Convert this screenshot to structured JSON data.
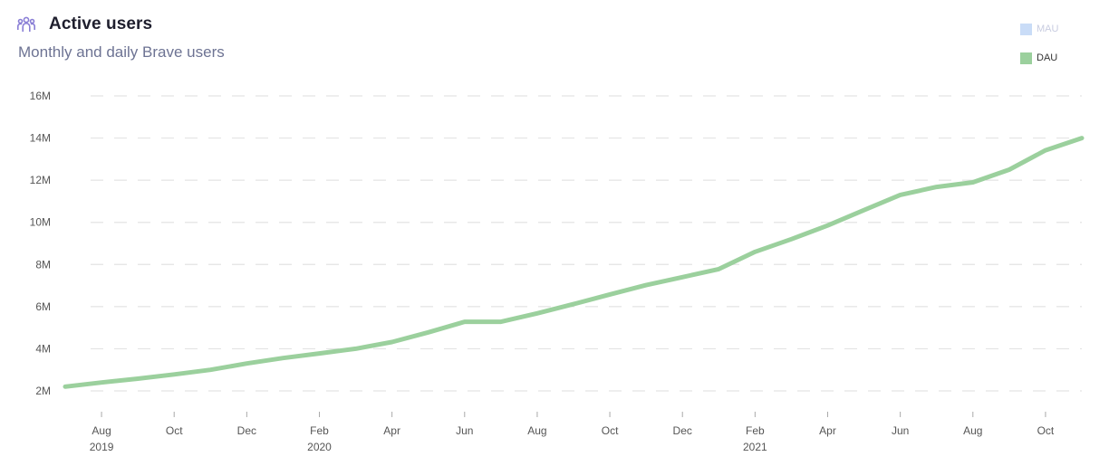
{
  "header": {
    "title": "Active users",
    "subtitle": "Monthly and daily Brave users",
    "icon": "users-icon"
  },
  "legend": [
    {
      "label": "MAU",
      "color": "#c9dcf7",
      "active": false
    },
    {
      "label": "DAU",
      "color": "#9bd09d",
      "active": true
    }
  ],
  "colors": {
    "dau_line": "#9bd09d",
    "grid": "#e4e4e4",
    "icon": "#8a7fd6"
  },
  "chart_data": {
    "type": "line",
    "title": "Active users",
    "subtitle": "Monthly and daily Brave users",
    "xlabel": "",
    "ylabel": "",
    "ylim": [
      2000000,
      16000000
    ],
    "y_ticks": [
      {
        "value": 2000000,
        "label": "2M"
      },
      {
        "value": 4000000,
        "label": "4M"
      },
      {
        "value": 6000000,
        "label": "6M"
      },
      {
        "value": 8000000,
        "label": "8M"
      },
      {
        "value": 10000000,
        "label": "10M"
      },
      {
        "value": 12000000,
        "label": "12M"
      },
      {
        "value": 14000000,
        "label": "14M"
      },
      {
        "value": 16000000,
        "label": "16M"
      }
    ],
    "x_ticks": [
      {
        "date": "2019-08",
        "label": "Aug",
        "year": "2019"
      },
      {
        "date": "2019-10",
        "label": "Oct",
        "year": ""
      },
      {
        "date": "2019-12",
        "label": "Dec",
        "year": ""
      },
      {
        "date": "2020-02",
        "label": "Feb",
        "year": "2020"
      },
      {
        "date": "2020-04",
        "label": "Apr",
        "year": ""
      },
      {
        "date": "2020-06",
        "label": "Jun",
        "year": ""
      },
      {
        "date": "2020-08",
        "label": "Aug",
        "year": ""
      },
      {
        "date": "2020-10",
        "label": "Oct",
        "year": ""
      },
      {
        "date": "2020-12",
        "label": "Dec",
        "year": ""
      },
      {
        "date": "2021-02",
        "label": "Feb",
        "year": "2021"
      },
      {
        "date": "2021-04",
        "label": "Apr",
        "year": ""
      },
      {
        "date": "2021-06",
        "label": "Jun",
        "year": ""
      },
      {
        "date": "2021-08",
        "label": "Aug",
        "year": ""
      },
      {
        "date": "2021-10",
        "label": "Oct",
        "year": ""
      }
    ],
    "grid": true,
    "legend_position": "top-right",
    "series": [
      {
        "name": "DAU",
        "color": "#9bd09d",
        "points": [
          {
            "x": "2019-07",
            "y": 2200000
          },
          {
            "x": "2019-08",
            "y": 2400000
          },
          {
            "x": "2019-09",
            "y": 2580000
          },
          {
            "x": "2019-10",
            "y": 2780000
          },
          {
            "x": "2019-11",
            "y": 3000000
          },
          {
            "x": "2019-12",
            "y": 3300000
          },
          {
            "x": "2020-01",
            "y": 3560000
          },
          {
            "x": "2020-02",
            "y": 3780000
          },
          {
            "x": "2020-03",
            "y": 4000000
          },
          {
            "x": "2020-04",
            "y": 4320000
          },
          {
            "x": "2020-05",
            "y": 4780000
          },
          {
            "x": "2020-06",
            "y": 5280000
          },
          {
            "x": "2020-07",
            "y": 5280000
          },
          {
            "x": "2020-08",
            "y": 5680000
          },
          {
            "x": "2020-09",
            "y": 6120000
          },
          {
            "x": "2020-10",
            "y": 6580000
          },
          {
            "x": "2020-11",
            "y": 7020000
          },
          {
            "x": "2020-12",
            "y": 7400000
          },
          {
            "x": "2021-01",
            "y": 7780000
          },
          {
            "x": "2021-02",
            "y": 8600000
          },
          {
            "x": "2021-03",
            "y": 9200000
          },
          {
            "x": "2021-04",
            "y": 9850000
          },
          {
            "x": "2021-05",
            "y": 10580000
          },
          {
            "x": "2021-06",
            "y": 11300000
          },
          {
            "x": "2021-07",
            "y": 11680000
          },
          {
            "x": "2021-08",
            "y": 11900000
          },
          {
            "x": "2021-09",
            "y": 12500000
          },
          {
            "x": "2021-10",
            "y": 13420000
          },
          {
            "x": "2021-11",
            "y": 14000000
          }
        ]
      }
    ]
  }
}
